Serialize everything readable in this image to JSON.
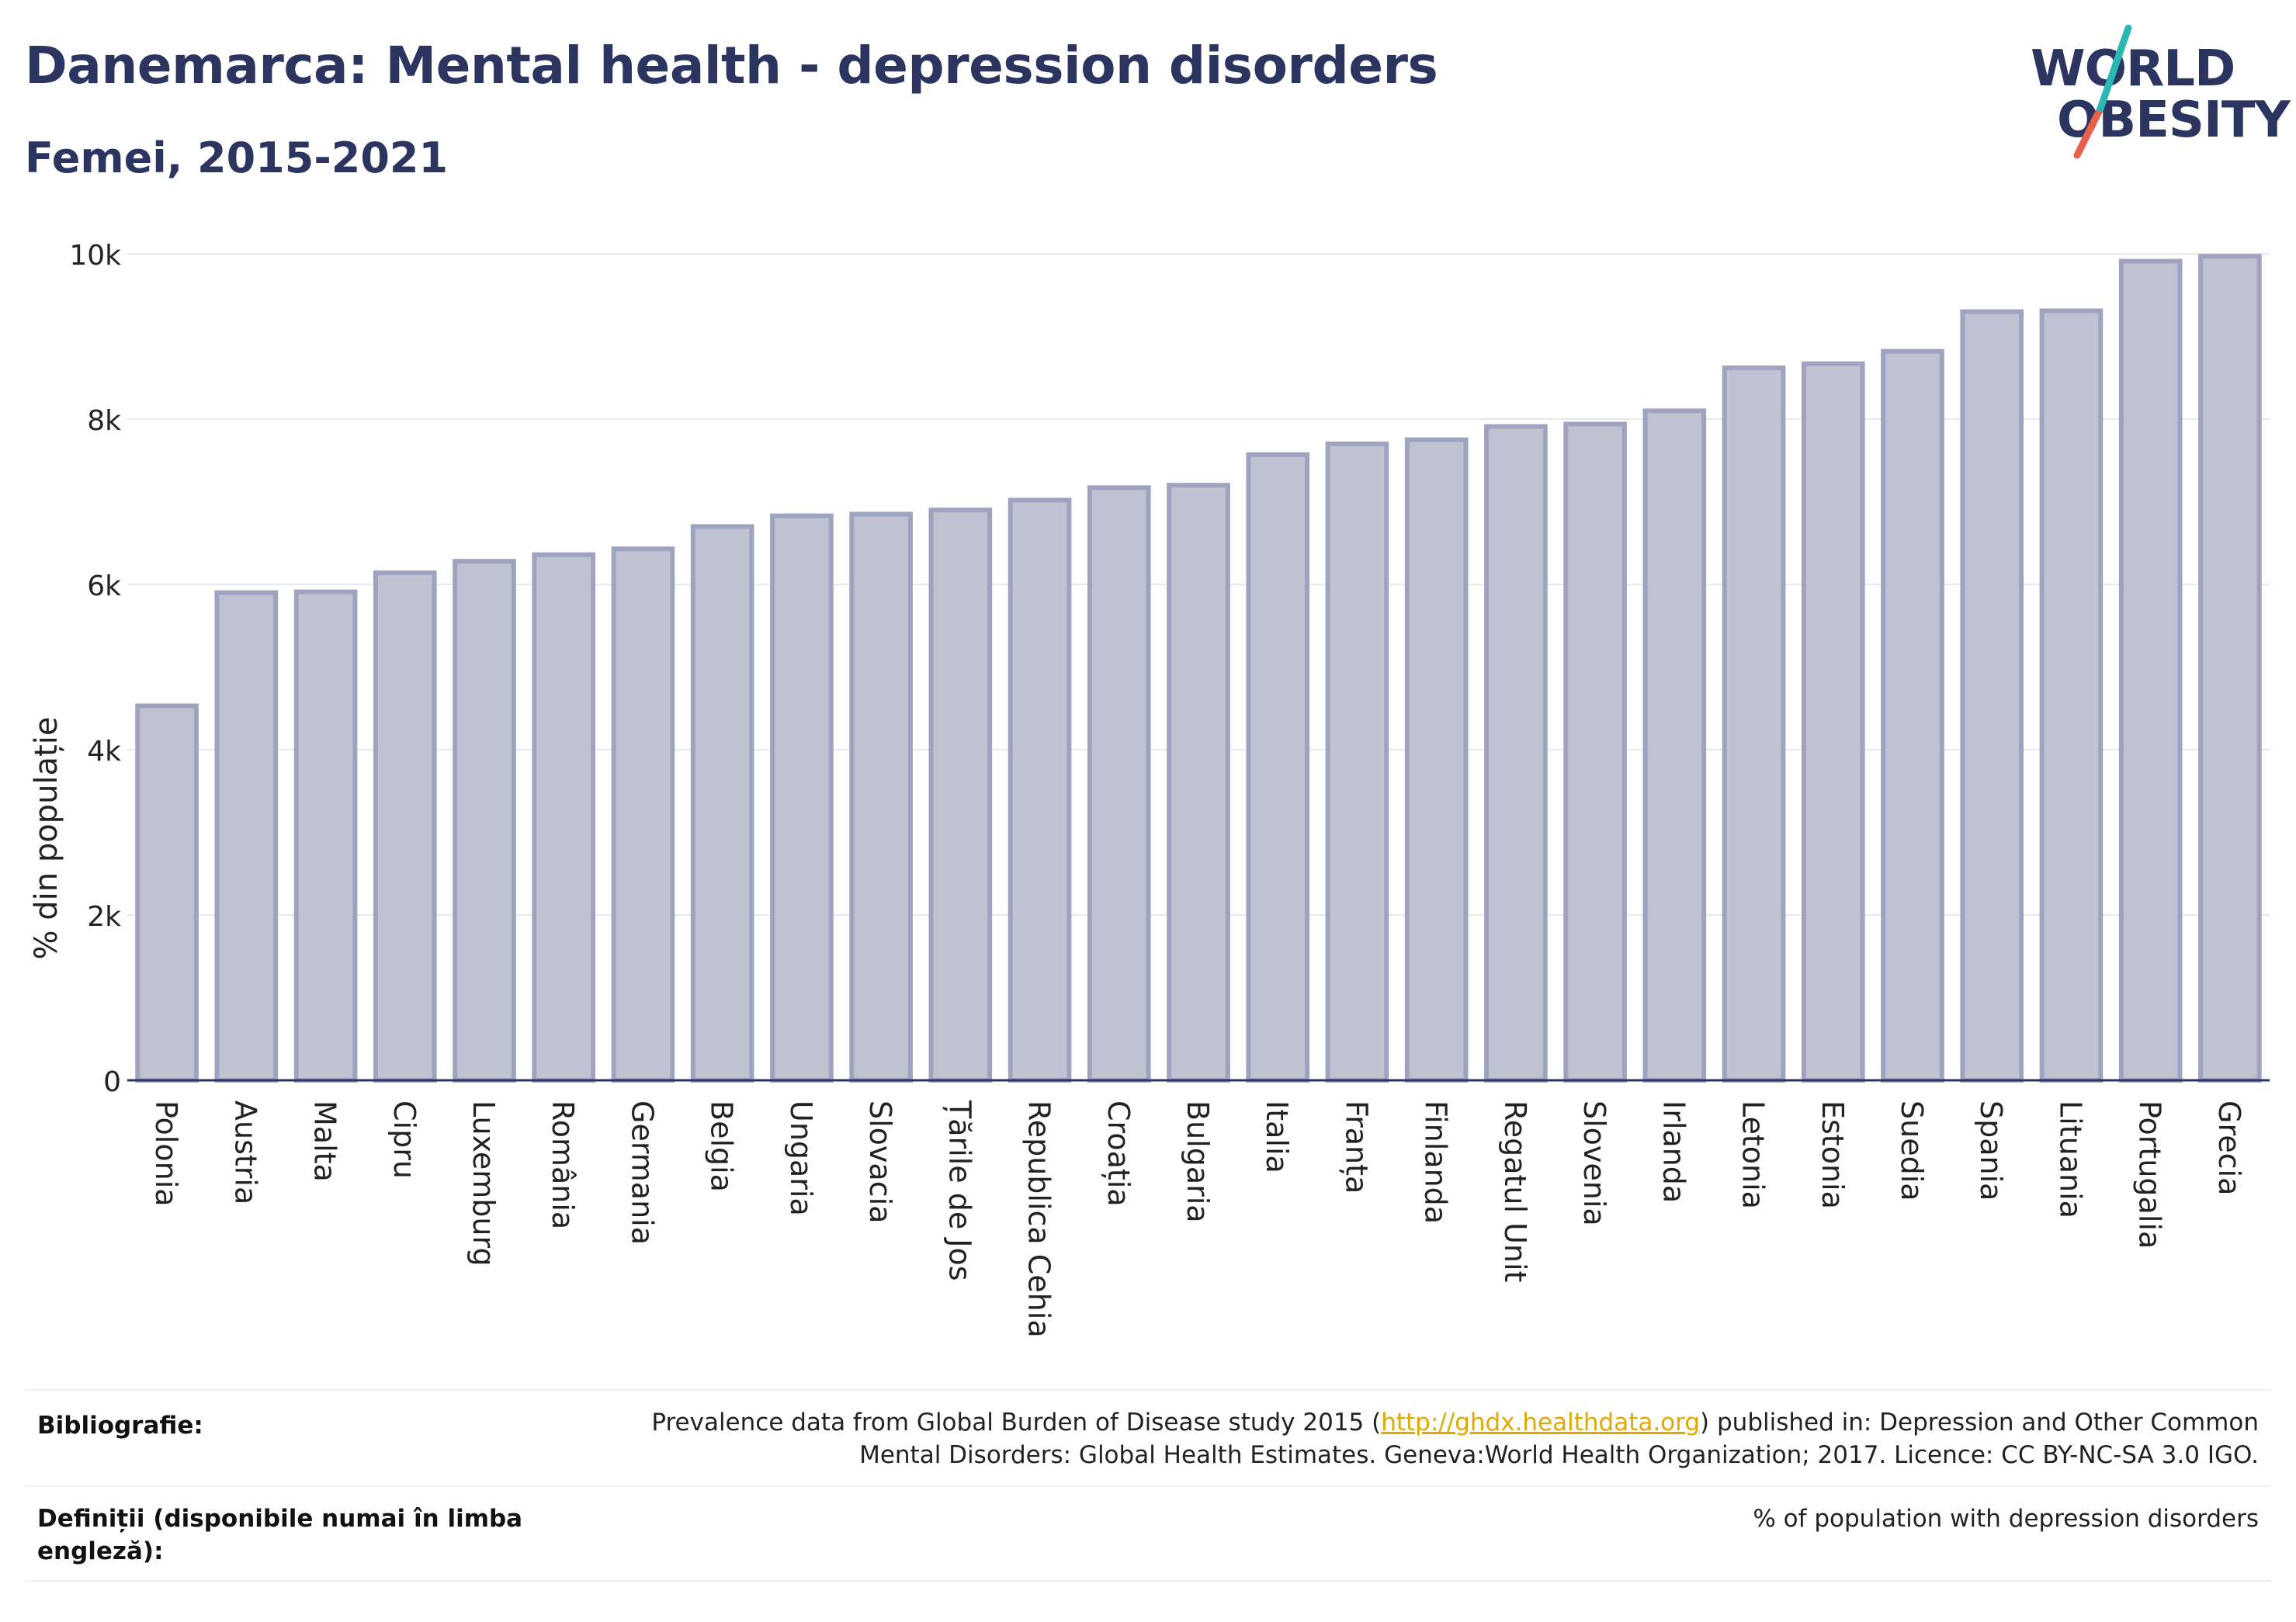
{
  "header": {
    "title": "Danemarca: Mental health - depression disorders",
    "subtitle": "Femei, 2015-2021"
  },
  "logo": {
    "line1": "WORLD",
    "line2": "OBESITY",
    "colors": {
      "text": "#2b3560",
      "slash_top": "#2bb7b3",
      "slash_bottom": "#e8604c"
    }
  },
  "chart_data": {
    "type": "bar",
    "ylabel": "% din populație",
    "ylim": [
      0,
      10000
    ],
    "yticks": [
      0,
      2000,
      4000,
      6000,
      8000,
      10000
    ],
    "ytick_labels": [
      "0",
      "2k",
      "4k",
      "6k",
      "8k",
      "10k"
    ],
    "grid": true,
    "colors": {
      "bar_fill": "#bfc3d1",
      "bar_stroke": "#9ea4bf",
      "grid": "#e6e8ee",
      "axis": "#2b3560"
    },
    "categories": [
      "Polonia",
      "Austria",
      "Malta",
      "Cipru",
      "Luxemburg",
      "România",
      "Germania",
      "Belgia",
      "Ungaria",
      "Slovacia",
      "Țările de Jos",
      "Republica Cehia",
      "Croația",
      "Bulgaria",
      "Italia",
      "Franța",
      "Finlanda",
      "Regatul Unit",
      "Slovenia",
      "Irlanda",
      "Letonia",
      "Estonia",
      "Suedia",
      "Spania",
      "Lituania",
      "Portugalia",
      "Grecia"
    ],
    "values": [
      4530,
      5900,
      5910,
      6140,
      6280,
      6360,
      6430,
      6700,
      6830,
      6850,
      6900,
      7020,
      7170,
      7200,
      7570,
      7700,
      7750,
      7910,
      7940,
      8100,
      8620,
      8670,
      8820,
      9300,
      9310,
      9910,
      9970
    ]
  },
  "footer": {
    "bibliography_label": "Bibliografie:",
    "bibliography_pre": "Prevalence data from Global Burden of Disease study 2015 (",
    "bibliography_link": "http://ghdx.healthdata.org",
    "bibliography_post": ") published in: Depression and Other Common",
    "bibliography_line2": "Mental Disorders: Global Health Estimates. Geneva:World Health Organization; 2017. Licence: CC BY-NC-SA 3.0 IGO.",
    "definitions_label_line1": "Definiții (disponibile numai în limba",
    "definitions_label_line2": "engleză):",
    "definitions_text": "% of population with depression disorders"
  }
}
